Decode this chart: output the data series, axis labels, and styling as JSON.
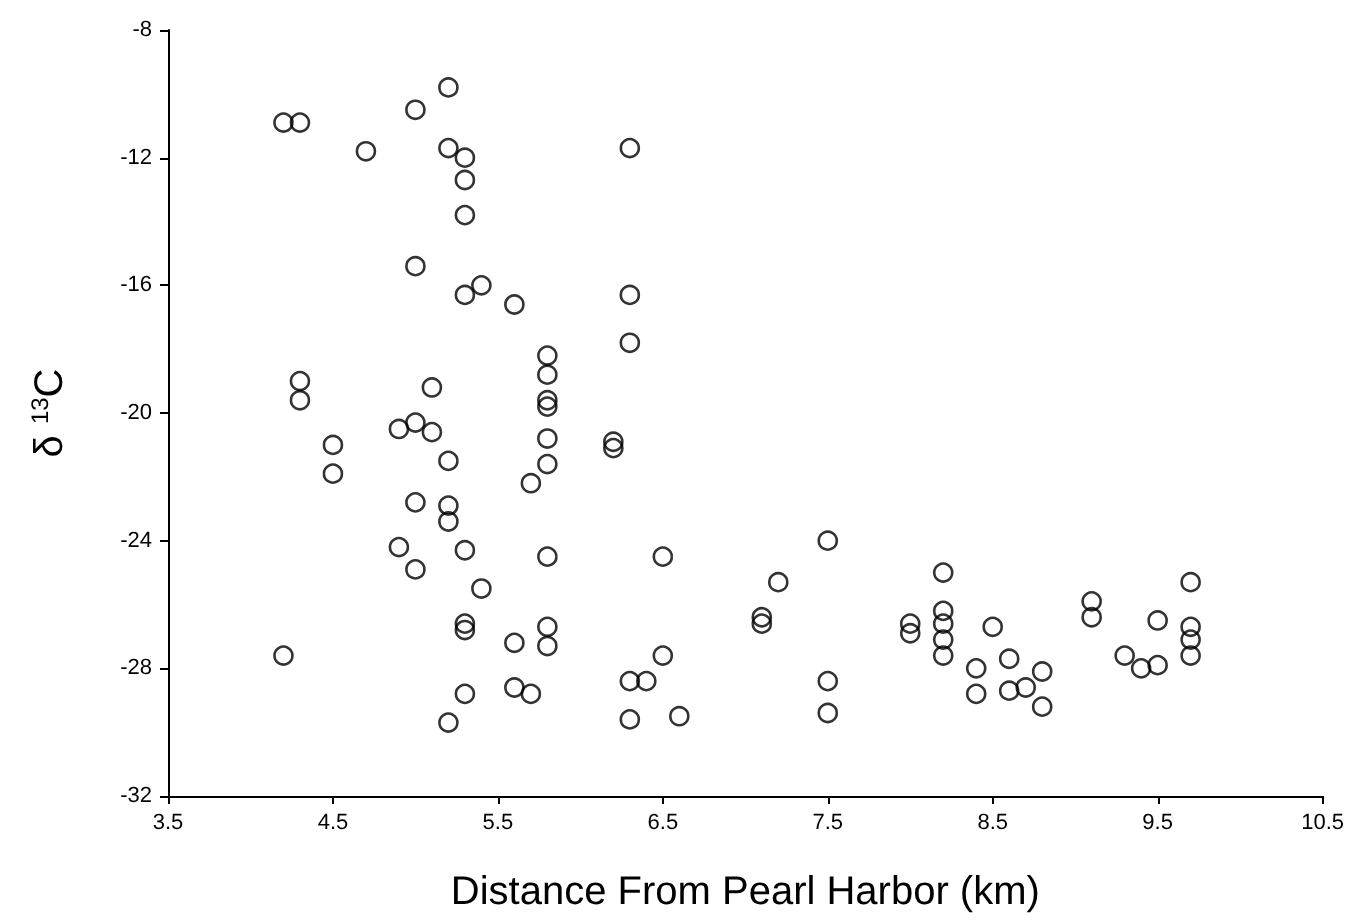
{
  "chart_data": {
    "type": "scatter",
    "xlabel": "Distance From Pearl Harbor (km)",
    "ylabel": "δ $^{13}$C",
    "xlim": [
      3.5,
      10.5
    ],
    "xticks": [
      3.5,
      4.5,
      5.5,
      6.5,
      7.5,
      8.5,
      9.5,
      10.5
    ],
    "ylim": [
      -32,
      -8
    ],
    "yticks": [
      -8,
      -12,
      -16,
      -20,
      -24,
      -28,
      -32
    ],
    "grid": false,
    "marker": "circle",
    "series": [
      {
        "color": "#000000",
        "x": [
          5.2,
          5.0,
          4.2,
          4.3,
          4.7,
          5.2,
          5.3,
          5.3,
          5.3,
          6.3,
          5.0,
          5.3,
          5.4,
          5.6,
          6.3,
          6.3,
          5.8,
          5.8,
          5.8,
          5.8,
          4.3,
          4.3,
          5.1,
          4.9,
          5.0,
          5.1,
          4.5,
          4.5,
          5.2,
          5.8,
          5.8,
          5.7,
          6.2,
          6.2,
          5.0,
          5.2,
          5.2,
          4.9,
          5.0,
          5.3,
          5.8,
          6.5,
          5.4,
          5.3,
          5.3,
          5.8,
          5.8,
          5.6,
          4.2,
          6.5,
          5.6,
          5.7,
          5.3,
          5.2,
          6.3,
          6.4,
          6.3,
          6.6,
          7.2,
          7.1,
          7.1,
          7.5,
          7.5,
          7.5,
          8.0,
          8.0,
          8.2,
          8.2,
          8.2,
          8.2,
          8.2,
          8.4,
          8.4,
          8.5,
          8.6,
          8.6,
          8.7,
          8.8,
          8.8,
          9.1,
          9.1,
          9.3,
          9.4,
          9.5,
          9.5,
          9.7,
          9.7,
          9.7,
          9.7
        ],
        "values": [
          -9.8,
          -10.5,
          -10.9,
          -10.9,
          -11.8,
          -11.7,
          -12.0,
          -12.7,
          -13.8,
          -11.7,
          -15.4,
          -16.3,
          -16.0,
          -16.6,
          -16.3,
          -17.8,
          -18.2,
          -18.8,
          -19.6,
          -19.8,
          -19.0,
          -19.6,
          -19.2,
          -20.5,
          -20.3,
          -20.6,
          -21.0,
          -21.9,
          -21.5,
          -20.8,
          -21.6,
          -22.2,
          -20.9,
          -21.1,
          -22.8,
          -22.9,
          -23.4,
          -24.2,
          -24.9,
          -24.3,
          -24.5,
          -24.5,
          -25.5,
          -26.6,
          -26.8,
          -26.7,
          -27.3,
          -27.2,
          -27.6,
          -27.6,
          -28.6,
          -28.8,
          -28.8,
          -29.7,
          -28.4,
          -28.4,
          -29.6,
          -29.5,
          -25.3,
          -26.4,
          -26.6,
          -24.0,
          -28.4,
          -29.4,
          -26.6,
          -26.9,
          -25.0,
          -26.2,
          -26.6,
          -27.1,
          -27.6,
          -28.0,
          -28.8,
          -26.7,
          -27.7,
          -28.7,
          -28.6,
          -28.1,
          -29.2,
          -25.9,
          -26.4,
          -27.6,
          -28.0,
          -27.9,
          -26.5,
          -25.3,
          -26.7,
          -27.1,
          -27.6
        ]
      }
    ]
  }
}
